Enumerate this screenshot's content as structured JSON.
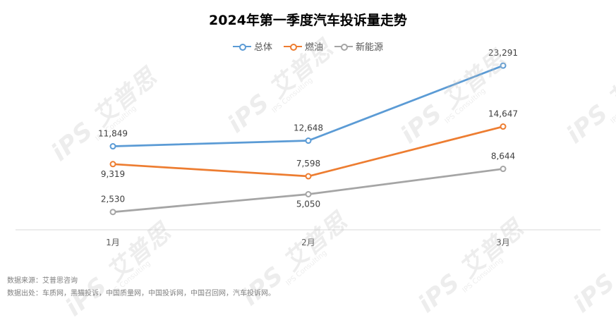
{
  "chart_data": {
    "type": "line",
    "title": "2024年第一季度汽车投诉量走势",
    "categories": [
      "1月",
      "2月",
      "3月"
    ],
    "series": [
      {
        "name": "总体",
        "color": "#5b9bd5",
        "values": [
          11849,
          12648,
          23291
        ],
        "labels": [
          "11,849",
          "12,648",
          "23,291"
        ]
      },
      {
        "name": "燃油",
        "color": "#ed7d31",
        "values": [
          9319,
          7598,
          14647
        ],
        "labels": [
          "9,319",
          "7,598",
          "14,647"
        ]
      },
      {
        "name": "新能源",
        "color": "#a5a5a5",
        "values": [
          2530,
          5050,
          8644
        ],
        "labels": [
          "2,530",
          "5,050",
          "8,644"
        ]
      }
    ],
    "ylim": [
      0,
      25000
    ],
    "grid": false,
    "legend": "top-center"
  },
  "footer": {
    "source_line": "数据来源：艾普思咨询",
    "origin_line": "数据出处：车质网，黑猫投诉，中国质量网，中国投诉网，中国召回网，汽车投诉网。"
  },
  "watermark": {
    "brand": "iPS 艾普思",
    "sub": "IPS Consulting"
  }
}
